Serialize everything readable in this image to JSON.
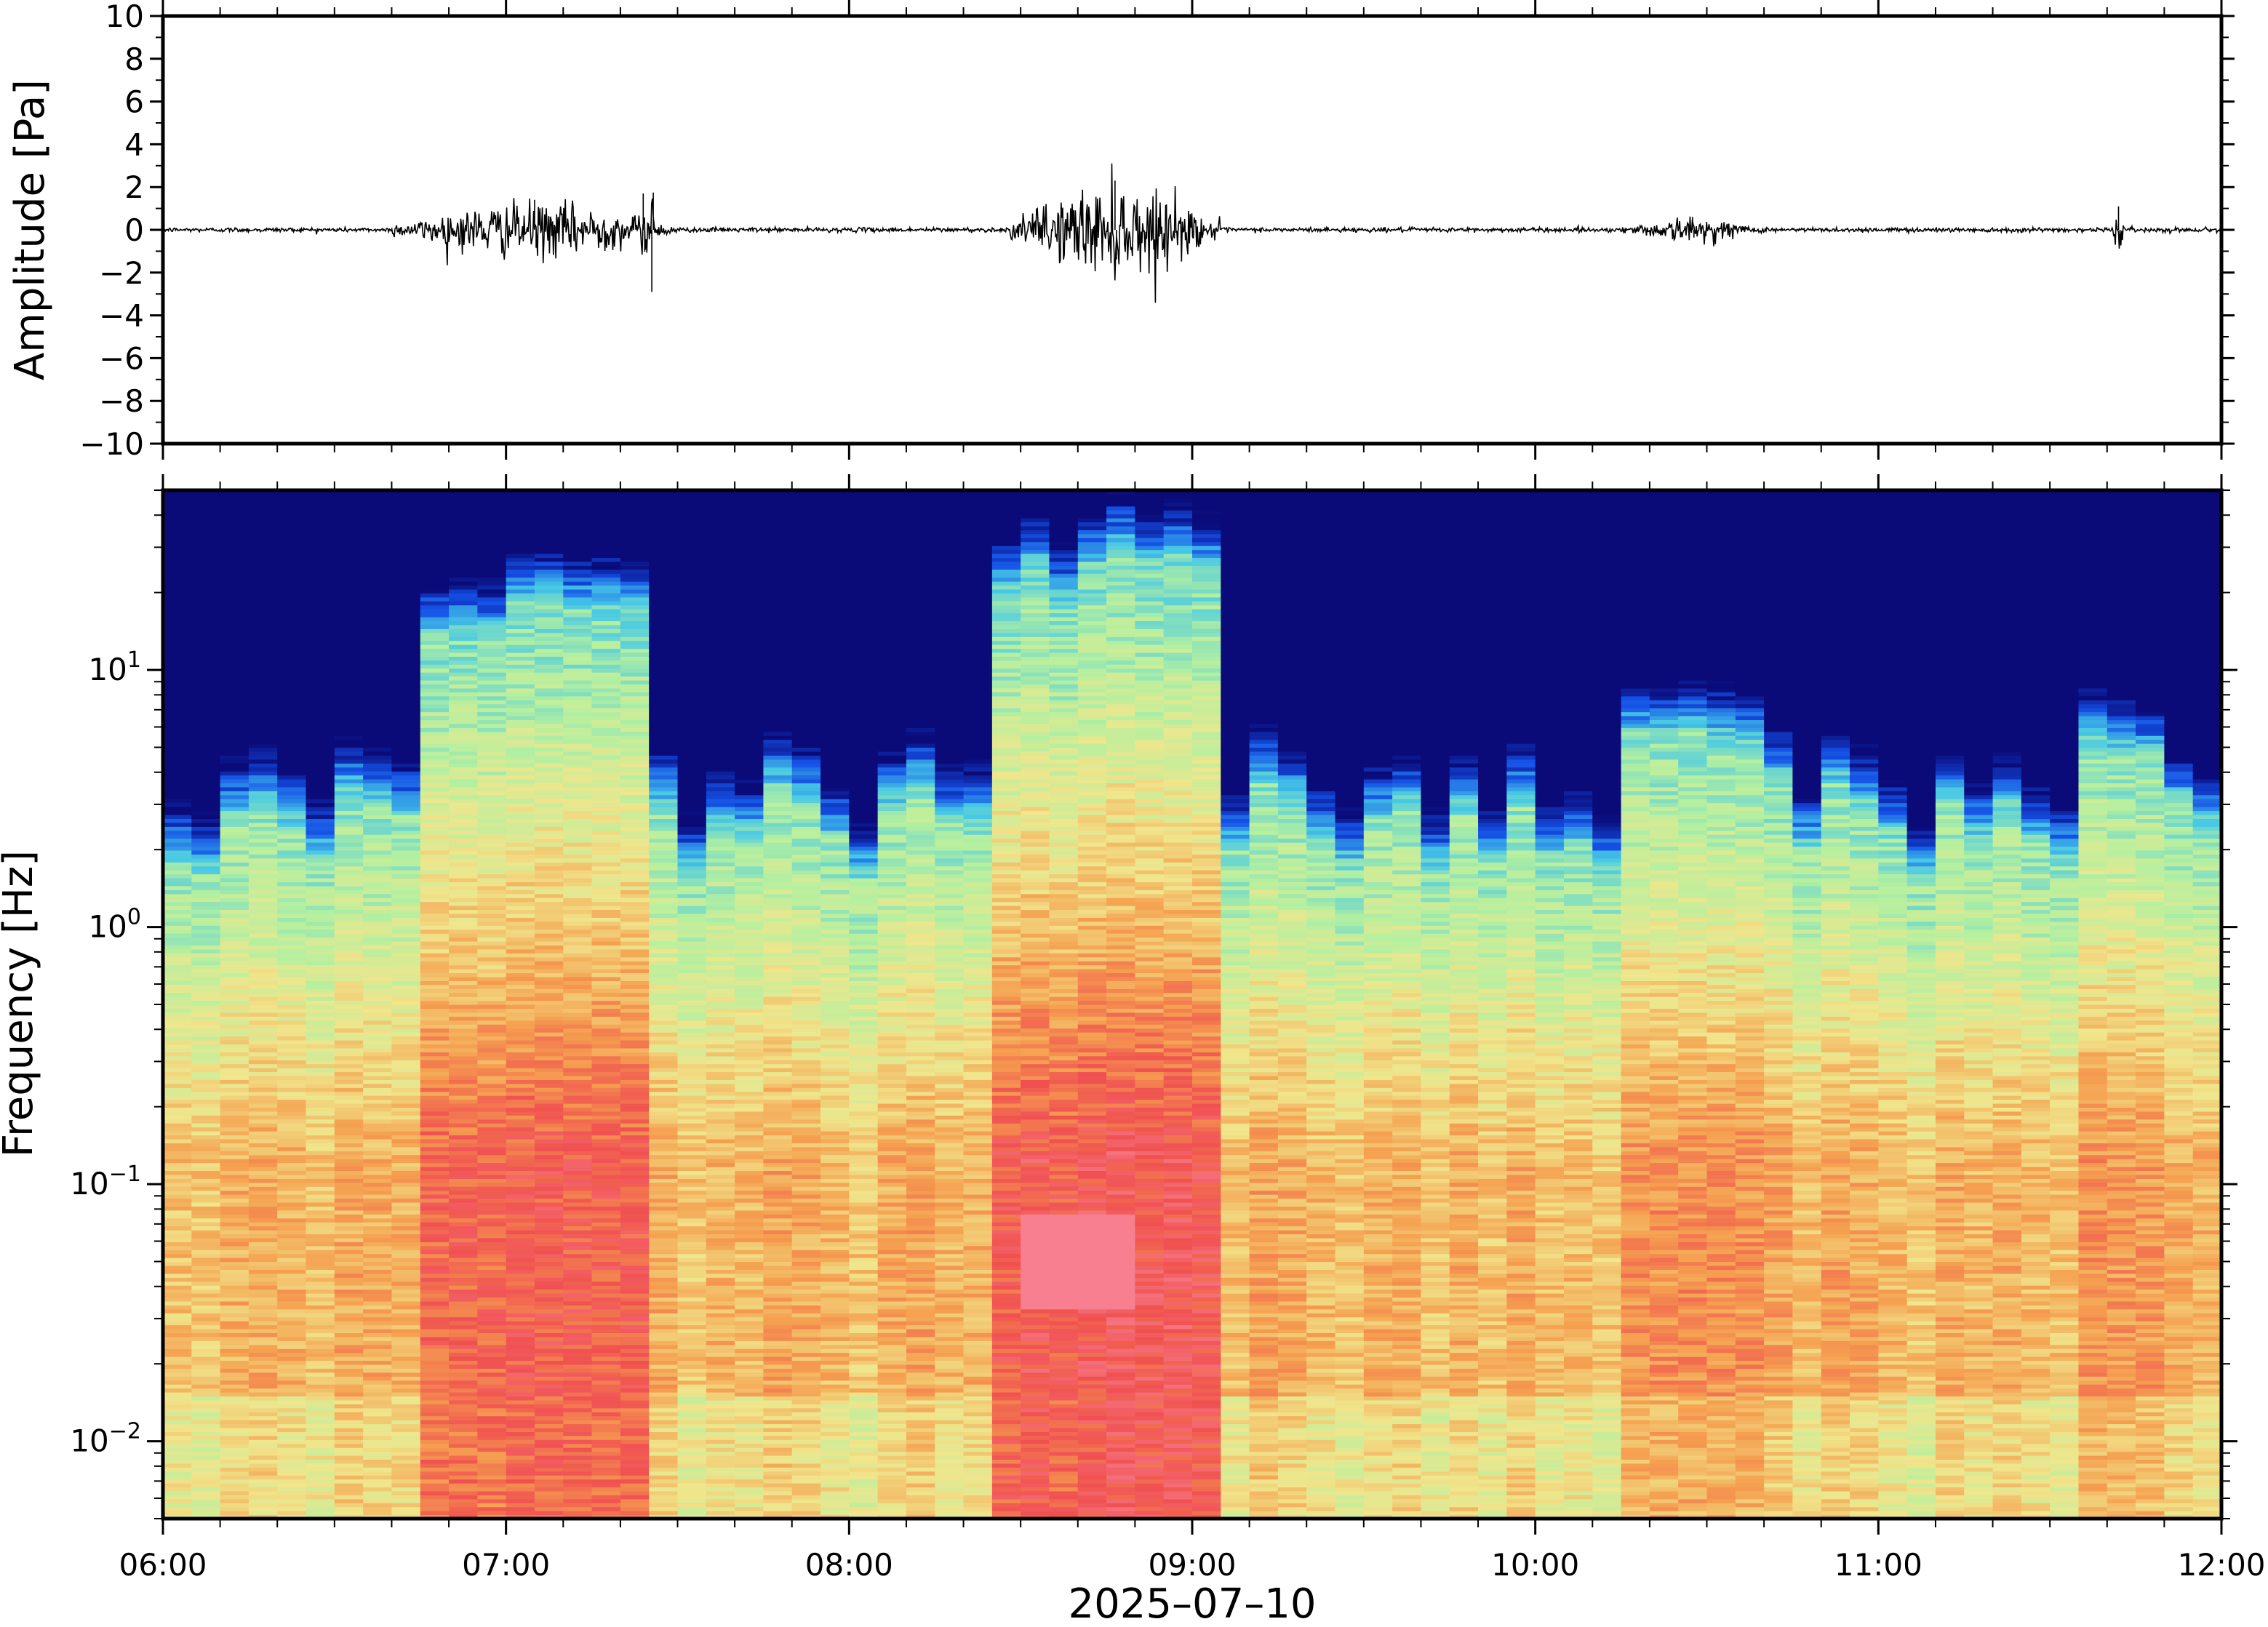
{
  "chart_data": [
    {
      "type": "line",
      "panel": "waveform",
      "title": "",
      "ylabel": "Amplitude [Pa]",
      "ylim": [
        -10,
        10
      ],
      "yticks": [
        10,
        8,
        6,
        4,
        2,
        0,
        -2,
        -4,
        -6,
        -8,
        -10
      ],
      "ytick_labels": [
        "10",
        "8",
        "6",
        "4",
        "2",
        "0",
        "−2",
        "−4",
        "−6",
        "−8",
        "−10"
      ],
      "grid": false,
      "line_color": "#000000",
      "baseline": 0,
      "noise_floor_pa": 0.15,
      "bursts": [
        {
          "start": "06:40",
          "end": "07:30",
          "peak_amplitude_pa": 1.4
        },
        {
          "start": "07:23",
          "end": "07:25",
          "peak_amplitude_pa": 1.7
        },
        {
          "start": "07:25",
          "end": "07:26",
          "peak_amplitude_pa": -2.9
        },
        {
          "start": "08:28",
          "end": "09:05",
          "peak_amplitude_pa": 2.3
        },
        {
          "start": "10:15",
          "end": "10:40",
          "peak_amplitude_pa": 0.6
        },
        {
          "start": "11:41",
          "end": "11:43",
          "peak_amplitude_pa": 1.1
        }
      ]
    },
    {
      "type": "heatmap",
      "panel": "spectrogram",
      "title": "",
      "xlabel": "2025–07–10",
      "ylabel": "Frequency [Hz]",
      "yscale": "log",
      "ylim": [
        0.005,
        50
      ],
      "yticks": [
        {
          "value": 0.01,
          "base": "10",
          "exp": "−2"
        },
        {
          "value": 0.1,
          "base": "10",
          "exp": "−1"
        },
        {
          "value": 1,
          "base": "10",
          "exp": "0"
        },
        {
          "value": 10,
          "base": "10",
          "exp": "1"
        }
      ],
      "colormap": [
        "#0a0a78",
        "#1450e6",
        "#46c8e6",
        "#b4f0a0",
        "#f0e68c",
        "#f5a050",
        "#f05050",
        "#fa8ca0"
      ],
      "activity_bursts": [
        {
          "start": "06:48",
          "end": "07:22",
          "intensity": 0.85
        },
        {
          "start": "08:28",
          "end": "09:02",
          "intensity": 0.95
        },
        {
          "start": "10:18",
          "end": "10:40",
          "intensity": 0.55
        },
        {
          "start": "11:38",
          "end": "11:48",
          "intensity": 0.5
        }
      ],
      "hottest_spot": {
        "time": "08:40",
        "frequency_hz": 0.05
      }
    }
  ],
  "x_axis": {
    "range": [
      "06:00",
      "12:00"
    ],
    "ticks": [
      "06:00",
      "07:00",
      "08:00",
      "09:00",
      "10:00",
      "11:00",
      "12:00"
    ],
    "label": "2025–07–10"
  }
}
